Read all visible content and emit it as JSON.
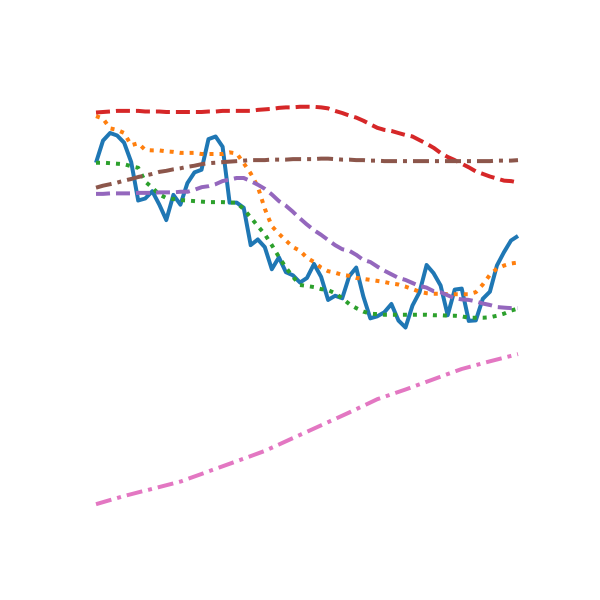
{
  "chart_data": {
    "type": "line",
    "title": "",
    "xlabel": "",
    "ylabel": "",
    "xlim": [
      0,
      60
    ],
    "ylim": [
      0,
      100
    ],
    "grid": false,
    "axes_visible": false,
    "series": [
      {
        "color": "#1f77b4",
        "style": "solid",
        "x": [
          0,
          1,
          2,
          3,
          4,
          5,
          6,
          7,
          8,
          9,
          10,
          11,
          12,
          13,
          14,
          15,
          16,
          17,
          18,
          19,
          20,
          21,
          22,
          23,
          24,
          25,
          26,
          27,
          28,
          29,
          30,
          31,
          32,
          33,
          34,
          35,
          36,
          37,
          38,
          39,
          40,
          41,
          42,
          43,
          44,
          45,
          46,
          47,
          48,
          49,
          50,
          51,
          52,
          53,
          54,
          55,
          56,
          57,
          58,
          59,
          60
        ],
        "values": [
          73.7,
          78,
          79.5,
          79,
          77.6,
          73.8,
          66.3,
          66.7,
          68.1,
          65.5,
          62.5,
          67.4,
          65.5,
          69.7,
          71.8,
          72.3,
          78.3,
          78.8,
          76.8,
          65.9,
          65.9,
          64.9,
          57.6,
          58.7,
          57.2,
          52.9,
          55.2,
          52.3,
          51.7,
          50.3,
          51.2,
          53.9,
          51.4,
          46.9,
          47.7,
          47.2,
          51.5,
          53.2,
          47.6,
          43.3,
          43.7,
          44.5,
          46.1,
          42.9,
          41.5,
          45.8,
          48.4,
          53.7,
          52.1,
          49.7,
          43.9,
          48.9,
          49.1,
          42.8,
          42.9,
          47.1,
          48.5,
          53.6,
          56.2,
          58.5,
          59.4
        ]
      },
      {
        "color": "#ff7f0e",
        "style": "dotted",
        "x": [
          0,
          1,
          2,
          3,
          4,
          5,
          6,
          7,
          8,
          9,
          10,
          11,
          12,
          13,
          14,
          15,
          16,
          17,
          18,
          19,
          20,
          21,
          22,
          23,
          24,
          25,
          26,
          27,
          28,
          29,
          30,
          31,
          32,
          33,
          34,
          35,
          36,
          37,
          38,
          39,
          40,
          41,
          42,
          43,
          44,
          45,
          46,
          47,
          48,
          49,
          50,
          51,
          52,
          53,
          54,
          55,
          56,
          57,
          58,
          59,
          60
        ],
        "values": [
          82.8,
          82.3,
          80.4,
          80.1,
          79.5,
          77.1,
          77.5,
          76.2,
          76.1,
          76.1,
          75.9,
          75.8,
          75.6,
          75.6,
          75.6,
          75.4,
          75.4,
          75.4,
          75.4,
          75.7,
          75.5,
          73.6,
          71.6,
          69,
          64.7,
          61.3,
          59.8,
          58.5,
          57.2,
          56.5,
          55.1,
          54.3,
          53.2,
          52.5,
          52.2,
          51.8,
          51.6,
          51.2,
          51,
          50.8,
          50.6,
          50.4,
          50.1,
          49.9,
          49.5,
          49,
          48.5,
          48.2,
          48.1,
          48.1,
          48,
          48,
          48,
          48,
          48.4,
          49.9,
          51.8,
          53,
          53.6,
          54,
          54.2
        ]
      },
      {
        "color": "#2ca02c",
        "style": "dotted",
        "x": [
          0,
          1,
          2,
          3,
          4,
          5,
          6,
          7,
          8,
          9,
          10,
          11,
          12,
          13,
          14,
          15,
          16,
          17,
          18,
          19,
          20,
          21,
          22,
          23,
          24,
          25,
          26,
          27,
          28,
          29,
          30,
          31,
          32,
          33,
          34,
          35,
          36,
          37,
          38,
          39,
          40,
          41,
          42,
          43,
          44,
          45,
          46,
          47,
          48,
          49,
          50,
          51,
          52,
          53,
          54,
          55,
          56,
          57,
          58,
          59,
          60
        ],
        "values": [
          73.7,
          73.7,
          73.6,
          73.5,
          73.4,
          73,
          72.7,
          70,
          68.8,
          67.5,
          66.8,
          66.6,
          66.4,
          66.3,
          66.2,
          66.1,
          66,
          66,
          66,
          65.9,
          65.9,
          64.6,
          63,
          61.3,
          59.7,
          57.6,
          55.3,
          53.2,
          51.4,
          49.8,
          49.6,
          49.4,
          49,
          48.8,
          48.2,
          47.2,
          46.1,
          45.3,
          44.6,
          44.2,
          44.1,
          44,
          44,
          44,
          44,
          44,
          44,
          44,
          43.9,
          43.9,
          43.8,
          43.8,
          43.7,
          43.4,
          43.4,
          43.4,
          43.5,
          43.8,
          44.2,
          44.8,
          45.2
        ]
      },
      {
        "color": "#d62728",
        "style": "dashed",
        "x": [
          0,
          1,
          2,
          3,
          4,
          5,
          6,
          7,
          8,
          9,
          10,
          11,
          12,
          13,
          14,
          15,
          16,
          17,
          18,
          19,
          20,
          21,
          22,
          23,
          24,
          25,
          26,
          27,
          28,
          29,
          30,
          31,
          32,
          33,
          34,
          35,
          36,
          37,
          38,
          39,
          40,
          41,
          42,
          43,
          44,
          45,
          46,
          47,
          48,
          49,
          50,
          51,
          52,
          53,
          54,
          55,
          56,
          57,
          58,
          59,
          60
        ],
        "values": [
          83.5,
          83.6,
          83.7,
          83.8,
          83.8,
          83.8,
          83.8,
          83.7,
          83.7,
          83.7,
          83.6,
          83.6,
          83.6,
          83.6,
          83.6,
          83.6,
          83.7,
          83.7,
          83.8,
          83.8,
          83.8,
          83.8,
          83.8,
          84,
          84.1,
          84.2,
          84.4,
          84.5,
          84.5,
          84.6,
          84.6,
          84.6,
          84.5,
          84.3,
          83.8,
          83.4,
          82.9,
          82.5,
          81.9,
          81.2,
          80.5,
          80.1,
          79.9,
          79.5,
          79.1,
          78.8,
          78.1,
          77.4,
          76.6,
          75.6,
          74.8,
          74.2,
          73.5,
          72.8,
          72,
          71.5,
          71,
          70.6,
          70.2,
          70.1,
          69.8
        ]
      },
      {
        "color": "#9467bd",
        "style": "dashed",
        "x": [
          0,
          1,
          2,
          3,
          4,
          5,
          6,
          7,
          8,
          9,
          10,
          11,
          12,
          13,
          14,
          15,
          16,
          17,
          18,
          19,
          20,
          21,
          22,
          23,
          24,
          25,
          26,
          27,
          28,
          29,
          30,
          31,
          32,
          33,
          34,
          35,
          36,
          37,
          38,
          39,
          40,
          41,
          42,
          43,
          44,
          45,
          46,
          47,
          48,
          49,
          50,
          51,
          52,
          53,
          54,
          55,
          56,
          57,
          58,
          59,
          60
        ],
        "values": [
          67.6,
          67.6,
          67.7,
          67.7,
          67.7,
          67.7,
          67.8,
          67.8,
          67.8,
          67.9,
          67.9,
          67.9,
          68,
          68,
          68.4,
          68.9,
          69.1,
          69.5,
          70.1,
          70.4,
          70.7,
          70.7,
          70.1,
          69.4,
          68.6,
          67.5,
          66.2,
          65.3,
          64.1,
          62.8,
          61.6,
          60.5,
          59.6,
          58.6,
          57.6,
          56.8,
          56.5,
          55.7,
          54.7,
          54.3,
          53.4,
          52.6,
          51.9,
          51.2,
          50.8,
          50.2,
          49.6,
          49.3,
          48.6,
          48.4,
          47.8,
          47.2,
          47,
          46.9,
          46.6,
          46.2,
          45.9,
          45.5,
          45.4,
          45.3,
          45.3
        ]
      },
      {
        "color": "#8c564b",
        "style": "dashdot",
        "x": [
          0,
          1,
          2,
          3,
          4,
          5,
          6,
          7,
          8,
          9,
          10,
          11,
          12,
          13,
          14,
          15,
          16,
          17,
          18,
          19,
          20,
          21,
          22,
          23,
          24,
          25,
          26,
          27,
          28,
          29,
          30,
          31,
          32,
          33,
          34,
          35,
          36,
          37,
          38,
          39,
          40,
          41,
          42,
          43,
          44,
          45,
          46,
          47,
          48,
          49,
          50,
          51,
          52,
          53,
          54,
          55,
          56,
          57,
          58,
          59,
          60
        ],
        "values": [
          68.8,
          69.2,
          69.5,
          69.8,
          70.2,
          70.5,
          70.9,
          71.2,
          71.5,
          71.9,
          72.1,
          72.4,
          72.6,
          72.9,
          73.1,
          73.4,
          73.6,
          73.7,
          73.8,
          73.9,
          74,
          74.1,
          74.2,
          74.2,
          74.2,
          74.3,
          74.3,
          74.3,
          74.4,
          74.4,
          74.4,
          74.4,
          74.5,
          74.5,
          74.4,
          74.3,
          74.3,
          74.2,
          74.2,
          74.1,
          74.1,
          74,
          74,
          74,
          74,
          74,
          74,
          74,
          74,
          74,
          74,
          74,
          74,
          74,
          74,
          74,
          74,
          74.1,
          74.1,
          74.1,
          74.2
        ]
      },
      {
        "color": "#e377c2",
        "style": "dashdot",
        "x": [
          0,
          4,
          8,
          12,
          16,
          20,
          24,
          28,
          32,
          36,
          40,
          44,
          48,
          52,
          56,
          60
        ],
        "values": [
          7,
          8.6,
          10,
          11.4,
          13.4,
          15.4,
          17.4,
          19.9,
          22.4,
          24.9,
          27.5,
          29.4,
          31.4,
          33.4,
          34.9,
          36.3
        ]
      }
    ]
  }
}
